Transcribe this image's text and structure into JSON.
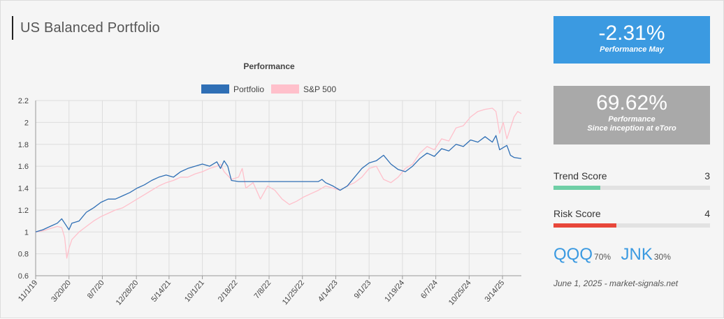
{
  "title": "US Balanced Portfolio",
  "kpis": {
    "may": {
      "value": "-2.31%",
      "label": "Performance May",
      "color": "#3b9ae1"
    },
    "inception": {
      "value": "69.62%",
      "label_line1": "Performance",
      "label_line2": "Since inception at eToro",
      "color": "#a9a9a9"
    }
  },
  "scores": {
    "trend": {
      "label": "Trend Score",
      "value": "3",
      "fraction": 0.3,
      "color": "#6fcfa6"
    },
    "risk": {
      "label": "Risk Score",
      "value": "4",
      "fraction": 0.4,
      "color": "#e8473a"
    }
  },
  "holdings": [
    {
      "ticker": "QQQ",
      "weight": "70%"
    },
    {
      "ticker": "JNK",
      "weight": "30%"
    }
  ],
  "footnote": "June 1, 2025 - market-signals.net",
  "chart_data": {
    "type": "line",
    "title": "Performance",
    "legend_position": "top-center",
    "grid": true,
    "ylim": [
      0.6,
      2.2
    ],
    "yticks": [
      "0.6",
      "0.8",
      "1",
      "1.2",
      "1.4",
      "1.6",
      "1.8",
      "2",
      "2.2"
    ],
    "ytick_values": [
      0.6,
      0.8,
      1.0,
      1.2,
      1.4,
      1.6,
      1.8,
      2.0,
      2.2
    ],
    "xrange_months": [
      0,
      67
    ],
    "xticks": [
      "11/1/19",
      "3/20/20",
      "8/7/20",
      "12/28/20",
      "5/14/21",
      "10/1/21",
      "2/18/22",
      "7/8/22",
      "11/25/22",
      "4/14/23",
      "9/1/23",
      "1/19/24",
      "6/7/24",
      "10/25/24",
      "3/14/25"
    ],
    "xtick_positions_months": [
      0,
      4.6,
      9.2,
      13.9,
      18.4,
      23.0,
      27.6,
      32.2,
      36.8,
      41.4,
      46.0,
      50.6,
      55.2,
      59.8,
      64.4
    ],
    "series": [
      {
        "name": "Portfolio",
        "color": "#2f6fb5",
        "x": [
          0,
          1,
          2,
          3,
          3.6,
          4,
          4.6,
          5,
          6,
          7,
          8,
          9,
          10,
          11,
          12,
          13,
          14,
          15,
          16,
          17,
          18,
          19,
          20,
          21,
          22,
          23,
          24,
          25,
          25.5,
          26,
          26.5,
          27,
          28,
          29,
          30,
          31,
          32,
          33,
          34,
          35,
          36,
          37,
          38,
          39,
          39.5,
          40,
          41,
          42,
          43,
          44,
          45,
          46,
          47,
          48,
          49,
          50,
          51,
          52,
          53,
          54,
          55,
          56,
          57,
          58,
          59,
          60,
          61,
          62,
          63,
          63.5,
          64,
          65,
          65.5,
          66,
          67
        ],
        "values": [
          1.0,
          1.02,
          1.05,
          1.08,
          1.12,
          1.08,
          1.02,
          1.08,
          1.1,
          1.18,
          1.22,
          1.27,
          1.3,
          1.3,
          1.33,
          1.36,
          1.4,
          1.43,
          1.47,
          1.5,
          1.52,
          1.5,
          1.55,
          1.58,
          1.6,
          1.62,
          1.6,
          1.64,
          1.58,
          1.65,
          1.6,
          1.47,
          1.46,
          1.46,
          1.46,
          1.46,
          1.46,
          1.46,
          1.46,
          1.46,
          1.46,
          1.46,
          1.46,
          1.46,
          1.48,
          1.45,
          1.42,
          1.38,
          1.42,
          1.5,
          1.58,
          1.63,
          1.65,
          1.7,
          1.62,
          1.57,
          1.55,
          1.6,
          1.67,
          1.72,
          1.69,
          1.76,
          1.74,
          1.8,
          1.78,
          1.84,
          1.82,
          1.87,
          1.82,
          1.88,
          1.75,
          1.79,
          1.7,
          1.68,
          1.67
        ]
      },
      {
        "name": "S&P 500",
        "color": "#ffc0cb",
        "x": [
          0,
          1,
          2,
          3,
          3.6,
          4,
          4.3,
          4.6,
          5,
          6,
          7,
          8,
          9,
          10,
          11,
          12,
          13,
          14,
          15,
          16,
          17,
          18,
          19,
          20,
          21,
          22,
          23,
          24,
          25,
          25.5,
          26,
          27,
          28,
          28.5,
          29,
          30,
          31,
          32,
          33,
          34,
          35,
          36,
          37,
          38,
          39,
          40,
          41,
          42,
          43,
          44,
          45,
          46,
          47,
          48,
          49,
          50,
          51,
          52,
          53,
          54,
          55,
          56,
          57,
          58,
          59,
          60,
          61,
          62,
          63,
          63.5,
          64,
          64.5,
          65,
          66,
          66.5,
          67
        ],
        "values": [
          1.0,
          1.01,
          1.03,
          1.05,
          1.04,
          0.95,
          0.76,
          0.85,
          0.93,
          1.0,
          1.05,
          1.1,
          1.14,
          1.17,
          1.2,
          1.22,
          1.26,
          1.3,
          1.34,
          1.38,
          1.42,
          1.45,
          1.47,
          1.5,
          1.5,
          1.53,
          1.55,
          1.58,
          1.6,
          1.62,
          1.55,
          1.48,
          1.5,
          1.58,
          1.4,
          1.45,
          1.3,
          1.42,
          1.38,
          1.3,
          1.25,
          1.28,
          1.32,
          1.35,
          1.38,
          1.42,
          1.4,
          1.38,
          1.42,
          1.45,
          1.5,
          1.58,
          1.6,
          1.48,
          1.45,
          1.5,
          1.58,
          1.62,
          1.72,
          1.78,
          1.75,
          1.85,
          1.83,
          1.95,
          1.97,
          2.05,
          2.1,
          2.12,
          2.13,
          2.1,
          1.9,
          2.0,
          1.85,
          2.05,
          2.1,
          2.08
        ]
      }
    ]
  }
}
